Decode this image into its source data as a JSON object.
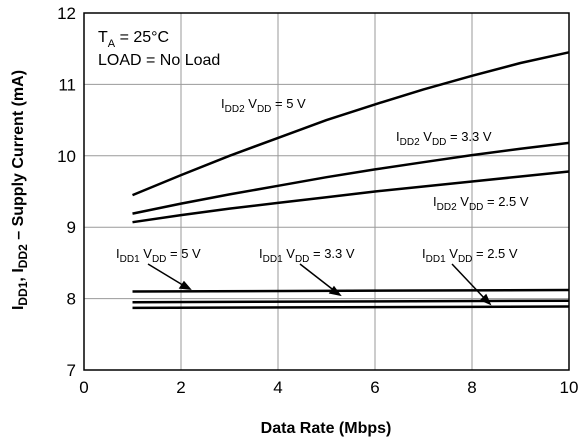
{
  "chart_data": {
    "type": "line",
    "xlabel": "Data Rate (Mbps)",
    "ylabel": "I_DD1, I_DD2 – Supply Current (mA)",
    "xlim": [
      0,
      10
    ],
    "ylim": [
      7,
      12
    ],
    "xticks": [
      0,
      2,
      4,
      6,
      8,
      10
    ],
    "yticks": [
      7,
      8,
      9,
      10,
      11,
      12
    ],
    "grid": true,
    "conditions": [
      "T_A = 25°C",
      "LOAD = No Load"
    ],
    "series": [
      {
        "name": "I_DD2 V_DD = 5 V",
        "x": [
          1,
          2,
          3,
          4,
          5,
          6,
          7,
          8,
          9,
          10
        ],
        "y": [
          9.45,
          9.73,
          10.0,
          10.25,
          10.5,
          10.72,
          10.93,
          11.12,
          11.3,
          11.45
        ]
      },
      {
        "name": "I_DD2 V_DD = 3.3 V",
        "x": [
          1,
          2,
          3,
          4,
          5,
          6,
          7,
          8,
          9,
          10
        ],
        "y": [
          9.19,
          9.33,
          9.46,
          9.58,
          9.7,
          9.81,
          9.91,
          10.01,
          10.1,
          10.18
        ]
      },
      {
        "name": "I_DD2 V_DD = 2.5 V",
        "x": [
          1,
          2,
          3,
          4,
          5,
          6,
          7,
          8,
          9,
          10
        ],
        "y": [
          9.07,
          9.17,
          9.26,
          9.34,
          9.42,
          9.5,
          9.57,
          9.64,
          9.71,
          9.78
        ]
      },
      {
        "name": "I_DD1 V_DD = 5 V",
        "x": [
          1,
          10
        ],
        "y": [
          8.1,
          8.12
        ]
      },
      {
        "name": "I_DD1 V_DD = 3.3 V",
        "x": [
          1,
          10
        ],
        "y": [
          7.95,
          7.97
        ]
      },
      {
        "name": "I_DD1 V_DD = 2.5 V",
        "x": [
          1,
          10
        ],
        "y": [
          7.87,
          7.89
        ]
      }
    ]
  },
  "labels": {
    "idd2_5": {
      "main": "I",
      "sub": "DD2",
      "mid": " V",
      "sub2": "DD",
      "tail": " = 5 V"
    },
    "idd2_33": {
      "main": "I",
      "sub": "DD2",
      "mid": " V",
      "sub2": "DD",
      "tail": " = 3.3 V"
    },
    "idd2_25": {
      "main": "I",
      "sub": "DD2",
      "mid": " V",
      "sub2": "DD",
      "tail": " = 2.5 V"
    },
    "idd1_5": {
      "main": "I",
      "sub": "DD1",
      "mid": " V",
      "sub2": "DD",
      "tail": " = 5 V"
    },
    "idd1_33": {
      "main": "I",
      "sub": "DD1",
      "mid": " V",
      "sub2": "DD",
      "tail": " = 3.3 V"
    },
    "idd1_25": {
      "main": "I",
      "sub": "DD1",
      "mid": " V",
      "sub2": "DD",
      "tail": " = 2.5 V"
    }
  },
  "condition_text": {
    "ta_main": "T",
    "ta_sub": "A",
    "ta_tail": " = 25°C",
    "load": "LOAD = No Load"
  },
  "ylabel_parts": {
    "p1": "I",
    "s1": "DD1",
    "p2": ", I",
    "s2": "DD2",
    "p3": " – Supply Current (mA)"
  }
}
